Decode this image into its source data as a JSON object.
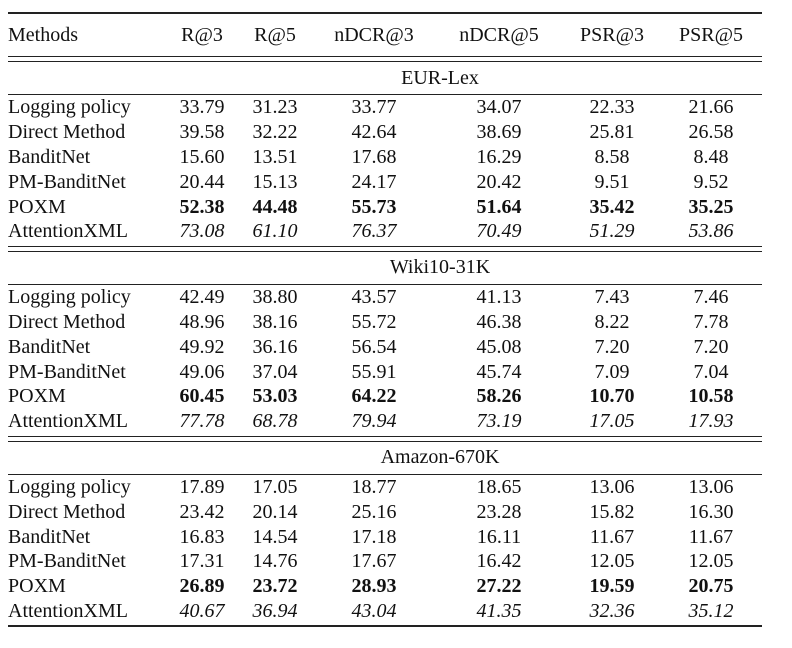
{
  "columns": [
    "Methods",
    "R@3",
    "R@5",
    "nDCR@3",
    "nDCR@5",
    "PSR@3",
    "PSR@5"
  ],
  "sections": [
    {
      "title": "EUR-Lex",
      "rows": [
        {
          "method": "Logging policy",
          "values": [
            "33.79",
            "31.23",
            "33.77",
            "34.07",
            "22.33",
            "21.66"
          ],
          "style": "normal"
        },
        {
          "method": "Direct Method",
          "values": [
            "39.58",
            "32.22",
            "42.64",
            "38.69",
            "25.81",
            "26.58"
          ],
          "style": "normal"
        },
        {
          "method": "BanditNet",
          "values": [
            "15.60",
            "13.51",
            "17.68",
            "16.29",
            "8.58",
            "8.48"
          ],
          "style": "normal"
        },
        {
          "method": "PM-BanditNet",
          "values": [
            "20.44",
            "15.13",
            "24.17",
            "20.42",
            "9.51",
            "9.52"
          ],
          "style": "normal"
        },
        {
          "method": "POXM",
          "values": [
            "52.38",
            "44.48",
            "55.73",
            "51.64",
            "35.42",
            "35.25"
          ],
          "style": "bold"
        },
        {
          "method": "AttentionXML",
          "values": [
            "73.08",
            "61.10",
            "76.37",
            "70.49",
            "51.29",
            "53.86"
          ],
          "style": "italic"
        }
      ]
    },
    {
      "title": "Wiki10-31K",
      "rows": [
        {
          "method": "Logging policy",
          "values": [
            "42.49",
            "38.80",
            "43.57",
            "41.13",
            "7.43",
            "7.46"
          ],
          "style": "normal"
        },
        {
          "method": "Direct Method",
          "values": [
            "48.96",
            "38.16",
            "55.72",
            "46.38",
            "8.22",
            "7.78"
          ],
          "style": "normal"
        },
        {
          "method": "BanditNet",
          "values": [
            "49.92",
            "36.16",
            "56.54",
            "45.08",
            "7.20",
            "7.20"
          ],
          "style": "normal"
        },
        {
          "method": "PM-BanditNet",
          "values": [
            "49.06",
            "37.04",
            "55.91",
            "45.74",
            "7.09",
            "7.04"
          ],
          "style": "normal"
        },
        {
          "method": "POXM",
          "values": [
            "60.45",
            "53.03",
            "64.22",
            "58.26",
            "10.70",
            "10.58"
          ],
          "style": "bold"
        },
        {
          "method": "AttentionXML",
          "values": [
            "77.78",
            "68.78",
            "79.94",
            "73.19",
            "17.05",
            "17.93"
          ],
          "style": "italic"
        }
      ]
    },
    {
      "title": "Amazon-670K",
      "rows": [
        {
          "method": "Logging policy",
          "values": [
            "17.89",
            "17.05",
            "18.77",
            "18.65",
            "13.06",
            "13.06"
          ],
          "style": "normal"
        },
        {
          "method": "Direct Method",
          "values": [
            "23.42",
            "20.14",
            "25.16",
            "23.28",
            "15.82",
            "16.30"
          ],
          "style": "normal"
        },
        {
          "method": "BanditNet",
          "values": [
            "16.83",
            "14.54",
            "17.18",
            "16.11",
            "11.67",
            "11.67"
          ],
          "style": "normal"
        },
        {
          "method": "PM-BanditNet",
          "values": [
            "17.31",
            "14.76",
            "17.67",
            "16.42",
            "12.05",
            "12.05"
          ],
          "style": "normal"
        },
        {
          "method": "POXM",
          "values": [
            "26.89",
            "23.72",
            "28.93",
            "27.22",
            "19.59",
            "20.75"
          ],
          "style": "bold"
        },
        {
          "method": "AttentionXML",
          "values": [
            "40.67",
            "36.94",
            "43.04",
            "41.35",
            "32.36",
            "35.12"
          ],
          "style": "italic"
        }
      ]
    }
  ]
}
